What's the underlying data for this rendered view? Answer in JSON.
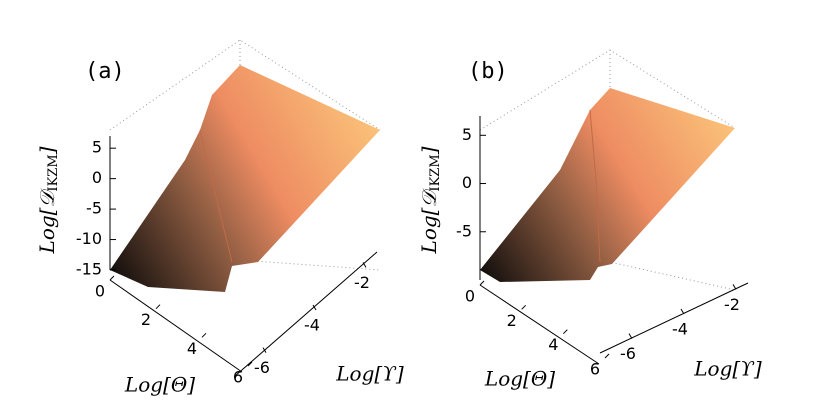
{
  "chart_data": [
    {
      "type": "surface",
      "title": "(a)",
      "xlabel": "Log[Θ]",
      "ylabel": "Log[ϒ]",
      "zlabel": {
        "main": "Log[𝒟",
        "sub": "IKZM",
        "close": "]"
      },
      "xlim": [
        0,
        6
      ],
      "xticks": [
        0,
        2,
        4,
        6
      ],
      "ylim": [
        -7,
        -1
      ],
      "yticks": [
        -6,
        -4,
        -2
      ],
      "zlim": [
        -15,
        7
      ],
      "zticks": [
        -15,
        -10,
        -5,
        0,
        5
      ]
    },
    {
      "type": "surface",
      "title": "(b)",
      "xlabel": "Log[Θ]",
      "ylabel": "Log[ϒ]",
      "zlabel": {
        "main": "Log[𝒟",
        "sub": "IKZM",
        "close": "]"
      },
      "xlim": [
        0,
        6
      ],
      "xticks": [
        0,
        2,
        4,
        6
      ],
      "ylim": [
        -7,
        -1
      ],
      "yticks": [
        -6,
        -4,
        -2
      ],
      "zlim": [
        -10,
        7
      ],
      "zticks": [
        -5,
        0,
        5
      ]
    }
  ]
}
